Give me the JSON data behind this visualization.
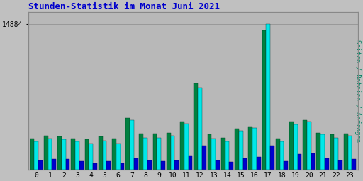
{
  "title": "Stunden-Statistik im Monat Juni 2021",
  "ylabel_right": "Seiten / Dateien / Anfragen",
  "ytick_label": "14884",
  "ytick_value": 14884,
  "background_color": "#c0c0c0",
  "plot_bg_color": "#b8b8b8",
  "title_color": "#0000cc",
  "bar_colors": [
    "#008040",
    "#00e8e8",
    "#0000cc"
  ],
  "hours": [
    0,
    1,
    2,
    3,
    4,
    5,
    6,
    7,
    8,
    9,
    10,
    11,
    12,
    13,
    14,
    15,
    16,
    17,
    18,
    19,
    20,
    21,
    22,
    23
  ],
  "seiten": [
    3200,
    3500,
    3400,
    3200,
    3100,
    3400,
    3200,
    5300,
    3700,
    3700,
    3800,
    4900,
    8800,
    3600,
    3300,
    4200,
    4400,
    14200,
    3200,
    4900,
    5100,
    3800,
    3600,
    3700
  ],
  "dateien": [
    2900,
    3200,
    3100,
    2900,
    2700,
    3000,
    2700,
    5100,
    3300,
    3300,
    3500,
    4700,
    8400,
    3200,
    2900,
    4000,
    4300,
    14884,
    2900,
    4600,
    4900,
    3600,
    3300,
    3500
  ],
  "anfragen": [
    1000,
    1100,
    1100,
    900,
    700,
    900,
    700,
    1200,
    1000,
    900,
    1000,
    1500,
    2500,
    1000,
    800,
    1200,
    1300,
    2500,
    900,
    1600,
    1700,
    1200,
    1000,
    1100
  ]
}
